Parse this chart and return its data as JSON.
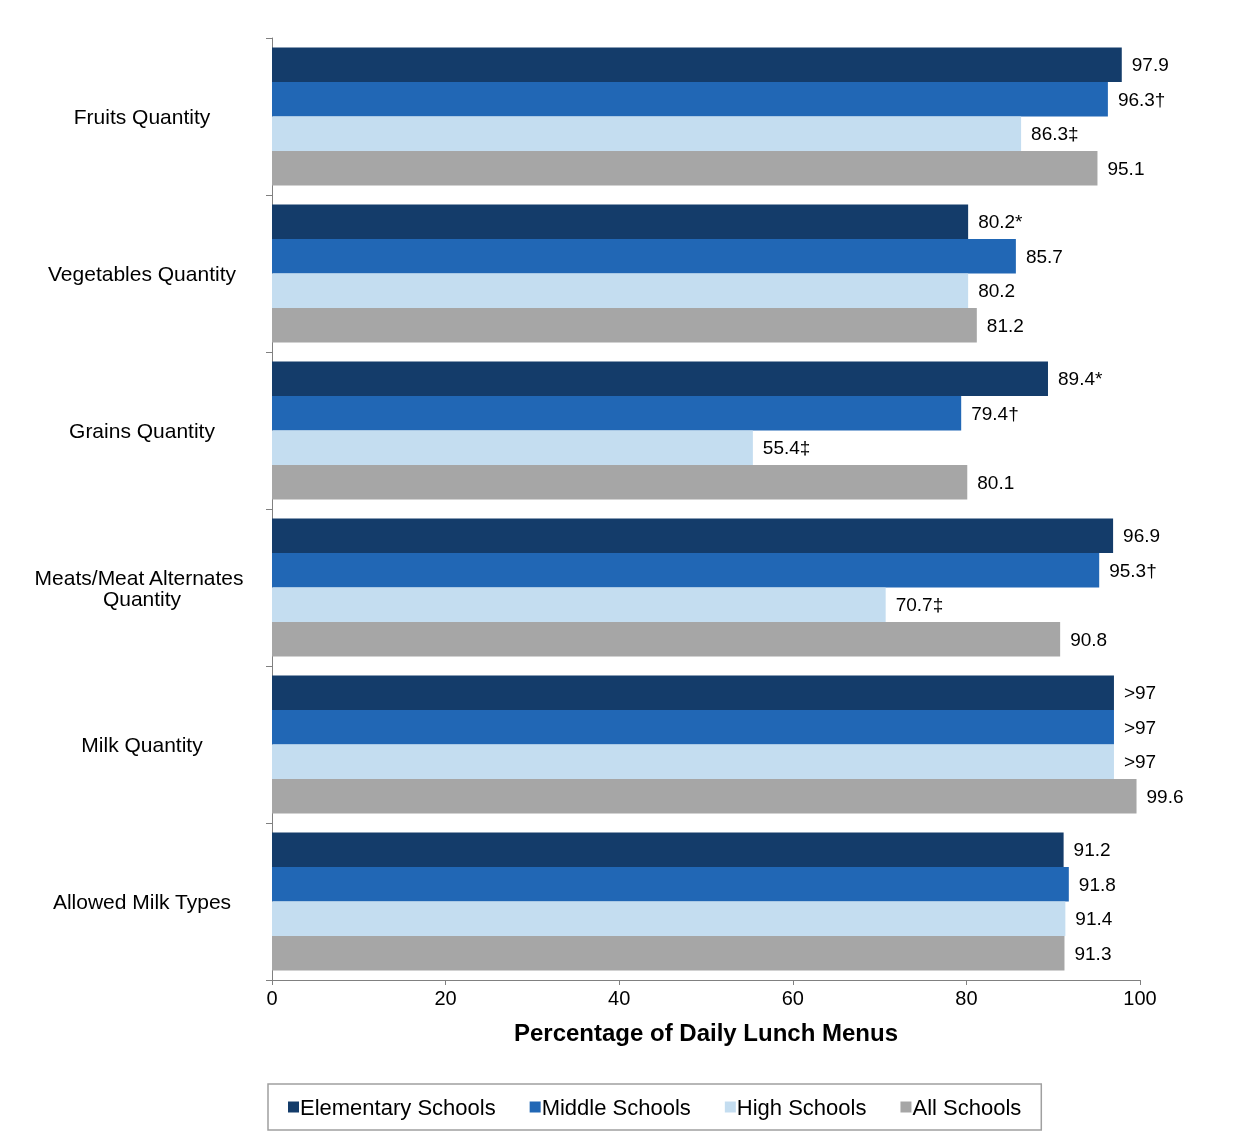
{
  "chart_data": {
    "type": "bar",
    "orientation": "horizontal",
    "xlabel": "Percentage of Daily Lunch Menus",
    "categories": [
      "Fruits Quantity",
      "Vegetables Quantity",
      "Grains Quantity",
      "Meats/Meat Alternates Quantity",
      "Milk Quantity",
      "Allowed Milk Types"
    ],
    "series": [
      {
        "name": "Elementary Schools",
        "color": "#143c6a",
        "values": [
          97.9,
          80.2,
          89.4,
          96.9,
          97,
          91.2
        ],
        "value_labels": [
          "97.9",
          "80.2*",
          "89.4*",
          "96.9",
          ">97",
          "91.2"
        ]
      },
      {
        "name": "Middle Schools",
        "color": "#2167b5",
        "values": [
          96.3,
          85.7,
          79.4,
          95.3,
          97,
          91.8
        ],
        "value_labels": [
          "96.3†",
          "85.7",
          "79.4†",
          "95.3†",
          ">97",
          "91.8"
        ]
      },
      {
        "name": "High Schools",
        "color": "#c4ddf0",
        "values": [
          86.3,
          80.2,
          55.4,
          70.7,
          97,
          91.4
        ],
        "value_labels": [
          "86.3‡",
          "80.2",
          "55.4‡",
          "70.7‡",
          ">97",
          "91.4"
        ]
      },
      {
        "name": "All Schools",
        "color": "#a6a6a6",
        "values": [
          95.1,
          81.2,
          80.1,
          90.8,
          99.6,
          91.3
        ],
        "value_labels": [
          "95.1",
          "81.2",
          "80.1",
          "90.8",
          "99.6",
          "91.3"
        ]
      }
    ],
    "xlim": [
      0,
      100
    ],
    "xticks": [
      0,
      20,
      40,
      60,
      80,
      100
    ],
    "grid": false,
    "legend": "bottom"
  }
}
